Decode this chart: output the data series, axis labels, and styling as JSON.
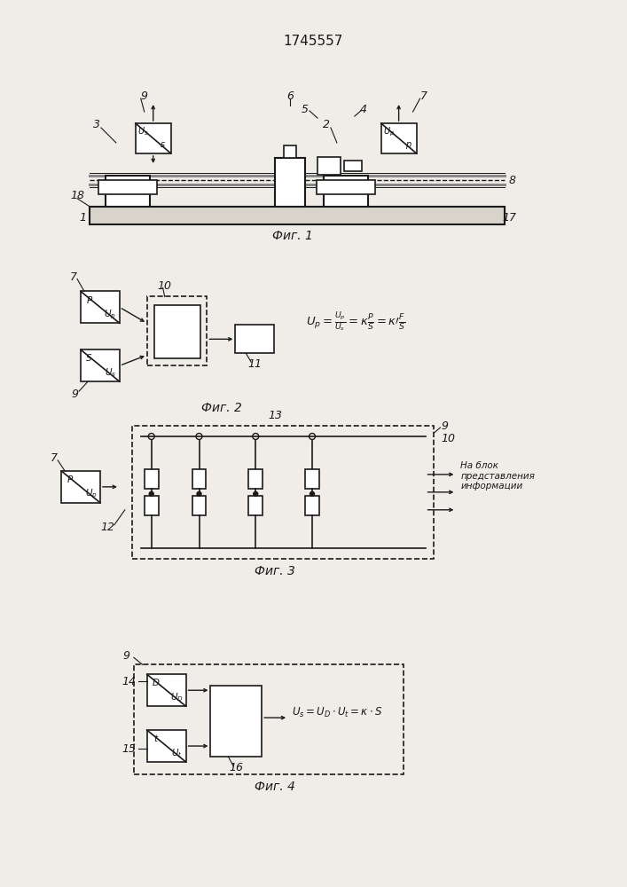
{
  "patent_number": "1745557",
  "fig1_caption": "Фиг. 1",
  "fig2_caption": "Фиг. 2",
  "fig3_caption": "Фиг. 3",
  "fig4_caption": "Фиг. 4",
  "bg_color": "#f0ede8",
  "line_color": "#1a1a1a"
}
